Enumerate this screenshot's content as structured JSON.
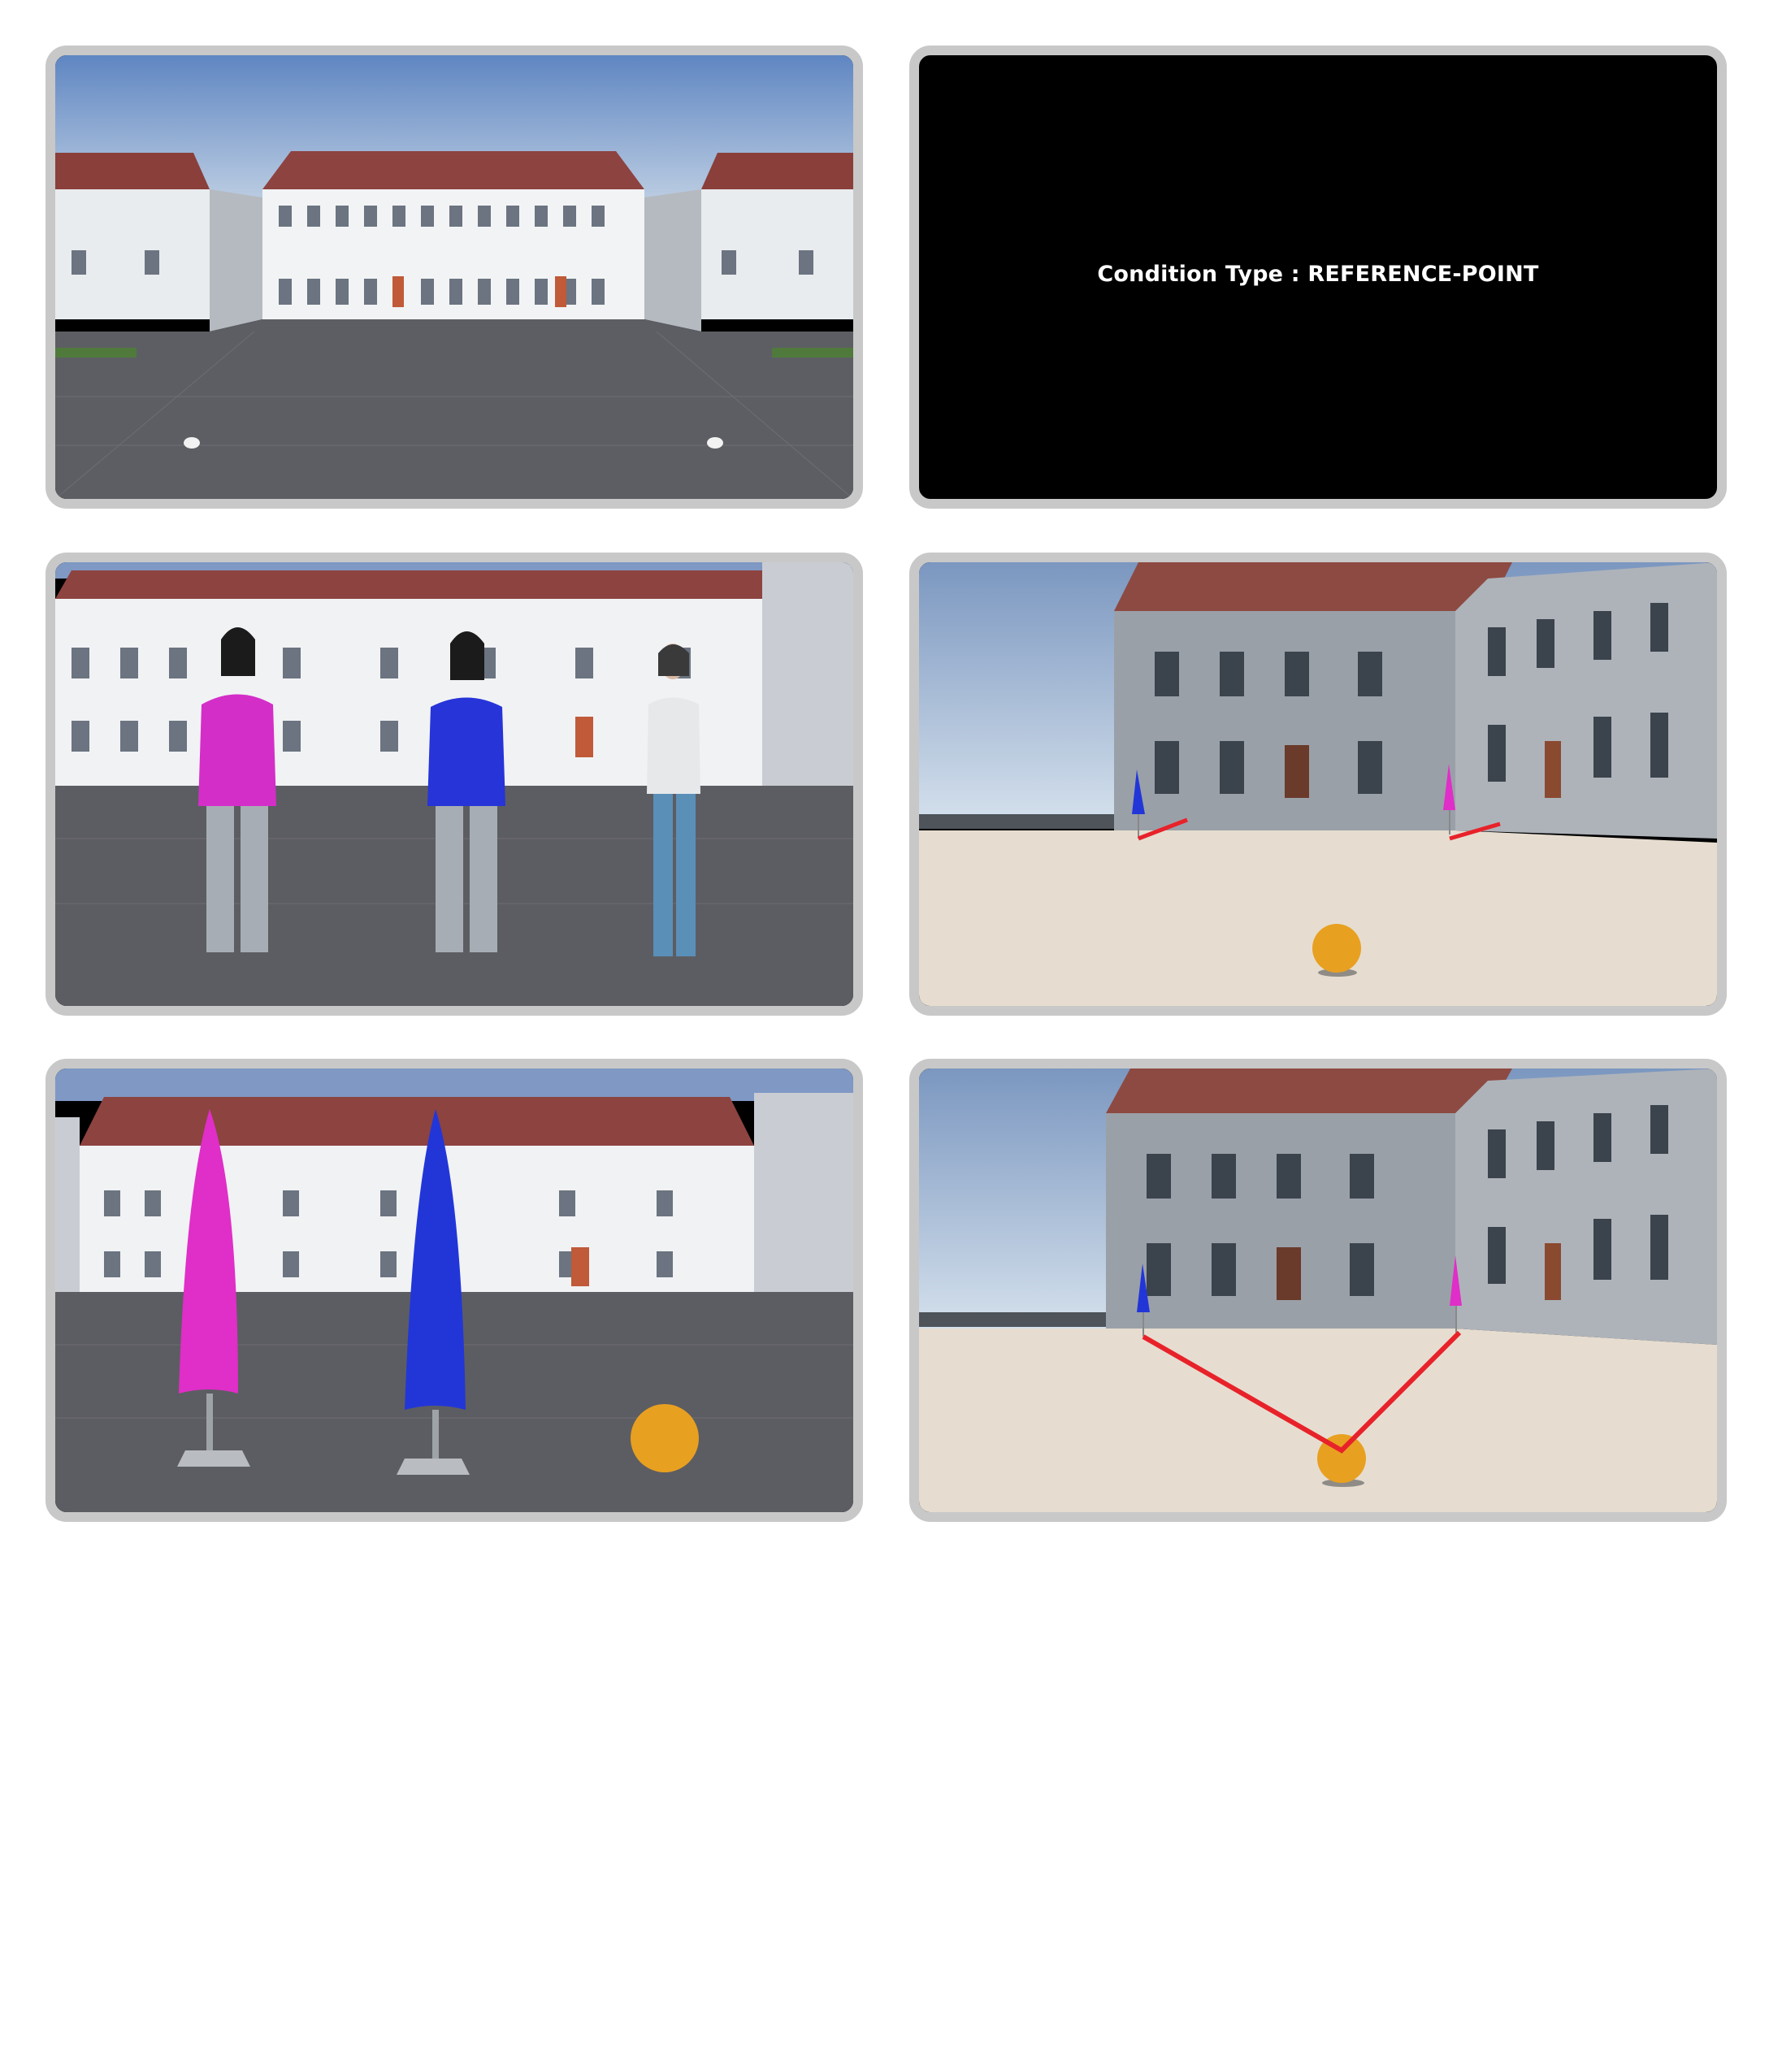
{
  "panels": [
    {
      "id": "courtyard-empty",
      "scene": "courtyard with grey pavement and white buildings"
    },
    {
      "id": "condition-screen",
      "condition_text": "Condition Type : REFERENCE-POINT"
    },
    {
      "id": "avatars",
      "scene": "two avatars (pink, blue) and a white-shirt avatar"
    },
    {
      "id": "umbrellas-far",
      "scene": "blue and pink umbrellas with short red lines, orange ball"
    },
    {
      "id": "umbrellas-near",
      "scene": "pink and blue closed umbrellas with orange ball"
    },
    {
      "id": "umbrellas-connected",
      "scene": "red lines from umbrellas meeting at ball"
    }
  ],
  "colors": {
    "frame": "#c8c8c8",
    "pink": "#e02ec8",
    "blue": "#2236d8",
    "ball": "#e8a020",
    "line": "#e8222a"
  }
}
